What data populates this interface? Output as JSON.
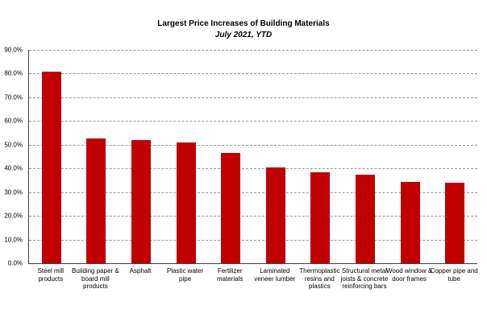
{
  "chart_data": {
    "type": "bar",
    "title": "Largest Price Increases of Building Materials",
    "subtitle": "July 2021, YTD",
    "categories": [
      "Steel mill products",
      "Building paper & board mill products",
      "Asphalt",
      "Plastic water pipe",
      "Fertilizer materials",
      "Laminated veneer lumber",
      "Thermoplastic resins and plastics",
      "Structural metal joists & concrete reinforcing bars",
      "Wood window & door frames",
      "Copper pipe and tube"
    ],
    "values": [
      81.0,
      52.7,
      51.8,
      50.9,
      46.6,
      40.3,
      38.4,
      37.3,
      34.4,
      33.9
    ],
    "unit": "%",
    "xlabel": "",
    "ylabel": "",
    "ylim": [
      0,
      90
    ],
    "ytick_step": 10,
    "yticks": [
      "0.0%",
      "10.0%",
      "20.0%",
      "30.0%",
      "40.0%",
      "50.0%",
      "60.0%",
      "70.0%",
      "80.0%",
      "90.0%"
    ],
    "grid": "horizontal-dashed",
    "legend": "none",
    "colors": {
      "bar": "#C00000",
      "gridline": "#969696",
      "axis": "#404040",
      "text": "#000000",
      "background": "#FFFFFF"
    }
  }
}
